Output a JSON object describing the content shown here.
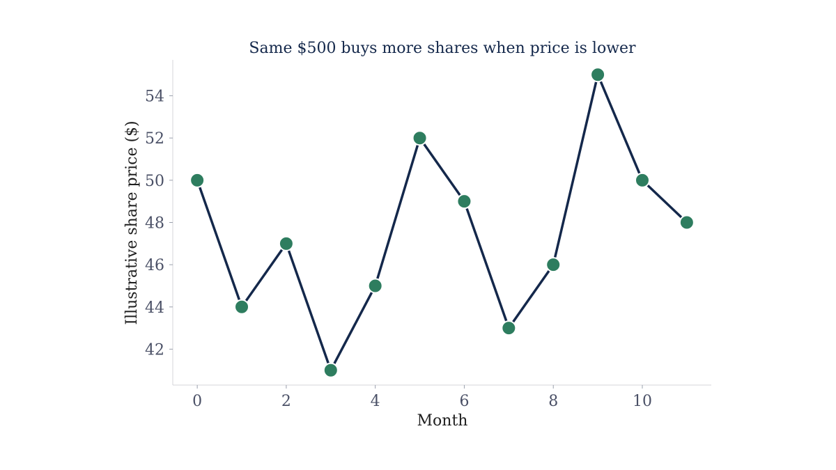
{
  "chart_data": {
    "type": "line",
    "title": "Same $500 buys more shares when price is lower",
    "xlabel": "Month",
    "ylabel": "Illustrative share price ($)",
    "x": [
      0,
      1,
      2,
      3,
      4,
      5,
      6,
      7,
      8,
      9,
      10,
      11
    ],
    "series": [
      {
        "values": [
          50,
          44,
          47,
          41,
          45,
          52,
          49,
          43,
          46,
          55,
          50,
          48
        ]
      }
    ],
    "xticks": [
      0,
      2,
      4,
      6,
      8,
      10
    ],
    "yticks": [
      42,
      44,
      46,
      48,
      50,
      52,
      54
    ],
    "xlim": [
      -0.55,
      11.55
    ],
    "ylim": [
      40.3,
      55.7
    ],
    "grid": false,
    "legend": "none",
    "colors": {
      "line": "#14284b",
      "marker": "#2e7d5f",
      "marker_edge": "#ffffff",
      "title": "#14284b",
      "tick": "#4a5066",
      "label": "#1f1f1f",
      "spine": "#d4d4d8"
    }
  }
}
